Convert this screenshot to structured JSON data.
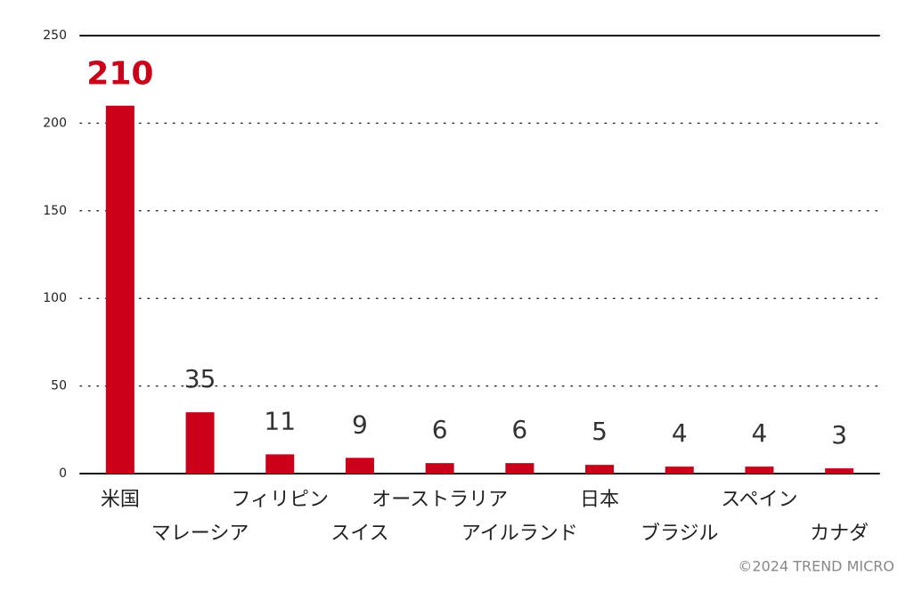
{
  "chart_data": {
    "type": "bar",
    "categories": [
      "米国",
      "マレーシア",
      "フィリピン",
      "スイス",
      "オーストラリア",
      "アイルランド",
      "日本",
      "ブラジル",
      "スペイン",
      "カナダ"
    ],
    "values": [
      210,
      35,
      11,
      9,
      6,
      6,
      5,
      4,
      4,
      3
    ],
    "color": "#cc0019",
    "ylim": [
      0,
      250
    ],
    "yticks": [
      0,
      50,
      100,
      150,
      200,
      250
    ],
    "grid": true,
    "credit": "©2024 TREND MICRO"
  }
}
